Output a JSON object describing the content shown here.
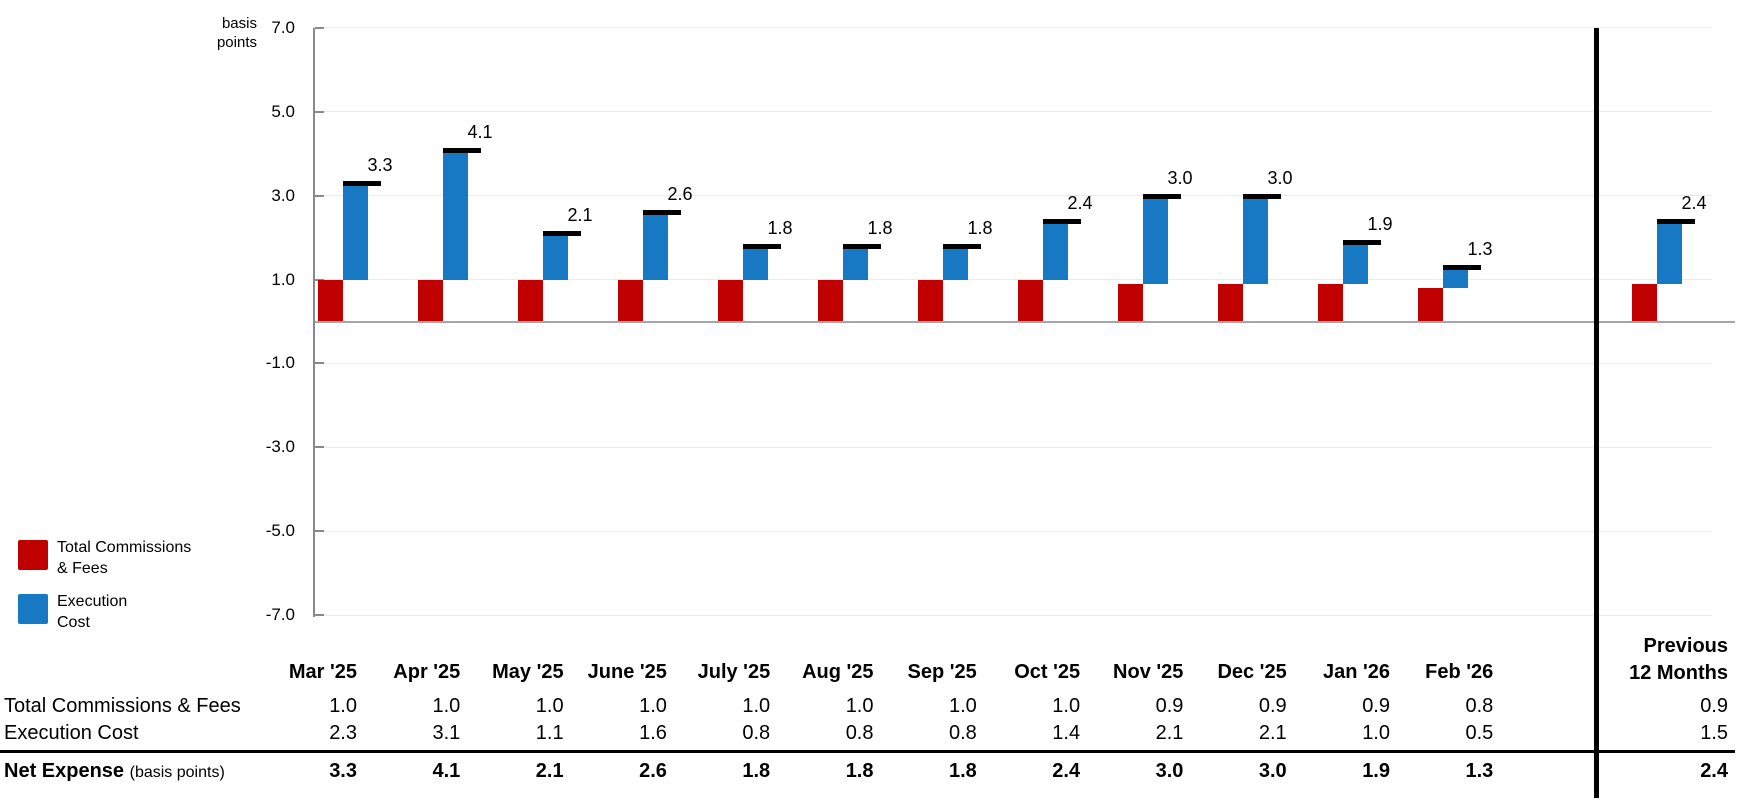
{
  "chart_data": {
    "type": "bar",
    "stacked": true,
    "title": "",
    "ylabel": "basis points",
    "ylim": [
      -7.0,
      7.0
    ],
    "ytick_step": 2.0,
    "y_tick_labels": [
      "7.0",
      "5.0",
      "3.0",
      "1.0",
      "-1.0",
      "-3.0",
      "-5.0",
      "-7.0"
    ],
    "grid": true,
    "legend_position": "bottom-left",
    "categories": [
      "Mar '25",
      "Apr '25",
      "May '25",
      "June '25",
      "July '25",
      "Aug '25",
      "Sep '25",
      "Oct '25",
      "Nov '25",
      "Dec '25",
      "Jan '26",
      "Feb '26"
    ],
    "previous_period_label": "Previous 12 Months",
    "series": [
      {
        "name": "Total Commissions & Fees",
        "color": "#C00000",
        "values": [
          1.0,
          1.0,
          1.0,
          1.0,
          1.0,
          1.0,
          1.0,
          1.0,
          0.9,
          0.9,
          0.9,
          0.8
        ],
        "previous_12_months": 0.9
      },
      {
        "name": "Execution Cost",
        "color": "#1778C4",
        "values": [
          2.3,
          3.1,
          1.1,
          1.6,
          0.8,
          0.8,
          0.8,
          1.4,
          2.1,
          2.1,
          1.0,
          0.5
        ],
        "previous_12_months": 1.5
      }
    ],
    "totals": {
      "name": "Net Expense",
      "marker_color": "#000000",
      "values": [
        3.3,
        4.1,
        2.1,
        2.6,
        1.8,
        1.8,
        1.8,
        2.4,
        3.0,
        3.0,
        1.9,
        1.3
      ],
      "previous_12_months": 2.4
    }
  },
  "axis": {
    "unit_line1": "basis",
    "unit_line2": "points"
  },
  "legend": {
    "items": [
      {
        "line1": "Total Commissions",
        "line2": "& Fees",
        "color": "#C00000"
      },
      {
        "line1": "Execution",
        "line2": "Cost",
        "color": "#1778C4"
      }
    ]
  },
  "table": {
    "previous_header": [
      "Previous",
      "12 Months"
    ],
    "net_label": "Net Expense",
    "net_label_suffix": "(basis points)"
  },
  "colors": {
    "commissions_red": "#C00000",
    "execution_blue": "#1778C4",
    "gridline": "#E4EBF5",
    "zero_line": "#A6A6A6",
    "axis_line": "#898989",
    "separator": "#000000"
  }
}
